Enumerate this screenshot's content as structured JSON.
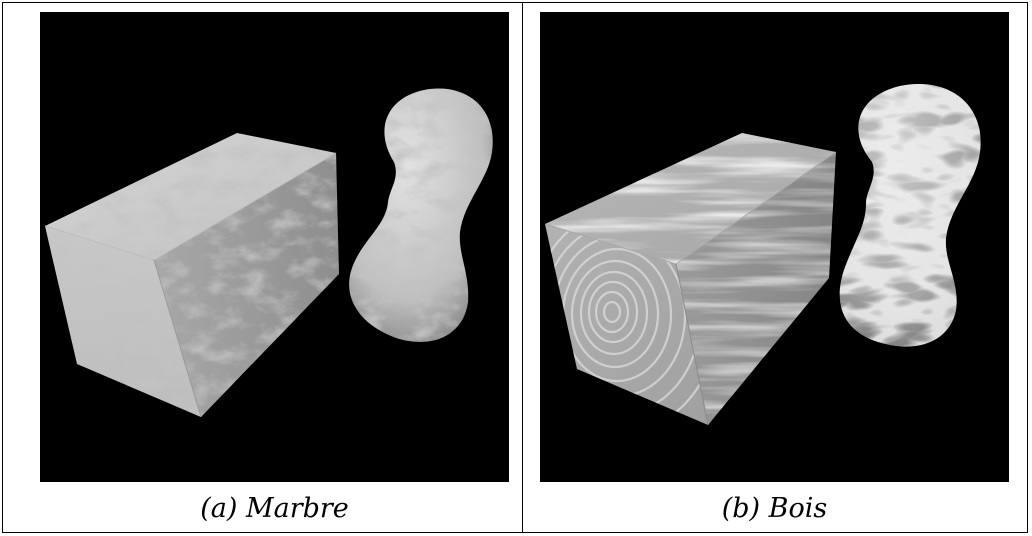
{
  "figures": [
    {
      "caption": "(a) Marbre",
      "texture": "marble"
    },
    {
      "caption": "(b) Bois",
      "texture": "wood"
    }
  ],
  "colors": {
    "background": "#000000",
    "frame": "#000000",
    "page": "#ffffff"
  }
}
